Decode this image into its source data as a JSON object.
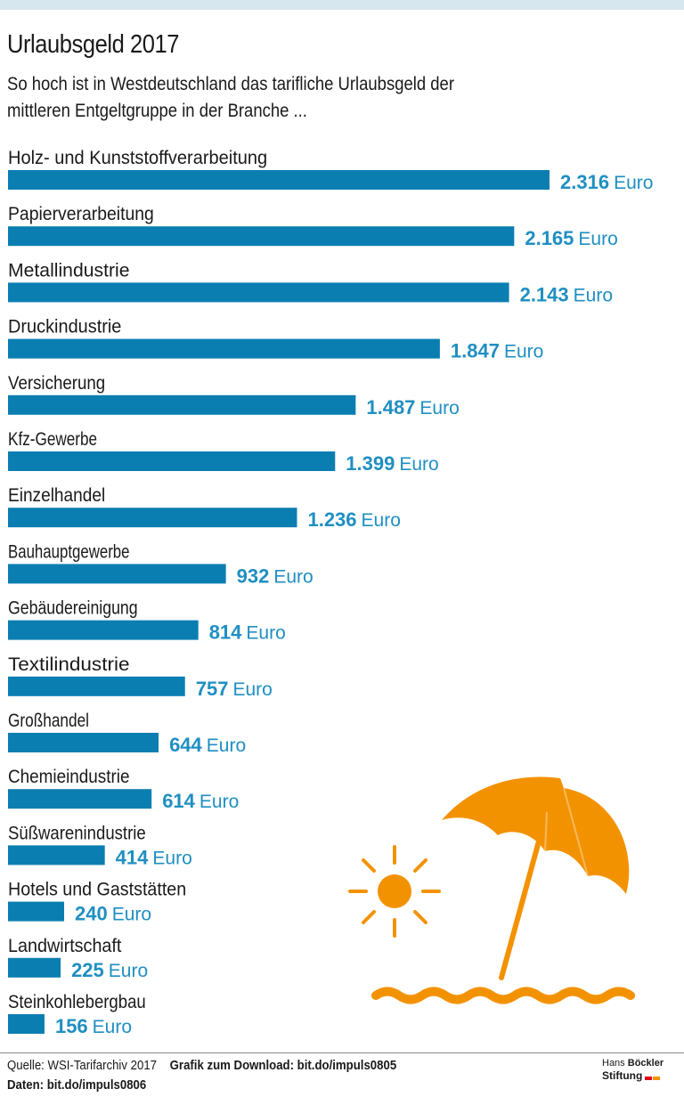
{
  "title": "Urlaubsgeld 2017",
  "subtitle": "So hoch ist in Westdeutschland das tarifliche Urlaubsgeld der mittleren Entgeltgruppe in der Branche ...",
  "colors": {
    "bar": "#0b7eb1",
    "value": "#1f8fc2",
    "accent": "#f39200",
    "band": "#d6e7ef"
  },
  "chart_data": {
    "type": "bar",
    "orientation": "horizontal",
    "unit": "Euro",
    "title": "Urlaubsgeld 2017",
    "xlabel": "",
    "ylabel": "",
    "xlim": [
      0,
      2316
    ],
    "grid": false,
    "categories": [
      "Holz- und Kunststoffverarbeitung",
      "Papierverarbeitung",
      "Metallindustrie",
      "Druckindustrie",
      "Versicherung",
      "Kfz-Gewerbe",
      "Einzelhandel",
      "Bauhauptgewerbe",
      "Gebäudereinigung",
      "Textilindustrie",
      "Großhandel",
      "Chemieindustrie",
      "Süßwarenindustrie",
      "Hotels und Gaststätten",
      "Landwirtschaft",
      "Steinkohlebergbau"
    ],
    "values": [
      2316,
      2165,
      2143,
      1847,
      1487,
      1399,
      1236,
      932,
      814,
      757,
      644,
      614,
      414,
      240,
      225,
      156
    ],
    "value_labels": [
      "2.316",
      "2.165",
      "2.143",
      "1.847",
      "1.487",
      "1.399",
      "1.236",
      "932",
      "814",
      "757",
      "644",
      "614",
      "414",
      "240",
      "225",
      "156"
    ]
  },
  "illustration": {
    "icons": [
      "sun-icon",
      "beach-umbrella-icon",
      "wave-icon"
    ]
  },
  "footer": {
    "source": "Quelle: WSI-Tarifarchiv 2017",
    "download": "Grafik zum Download: bit.do/impuls0805",
    "data": "Daten: bit.do/impuls0806"
  },
  "logo": {
    "line1_light": "Hans",
    "line1_bold": "Böckler",
    "line2": "Stiftung"
  }
}
